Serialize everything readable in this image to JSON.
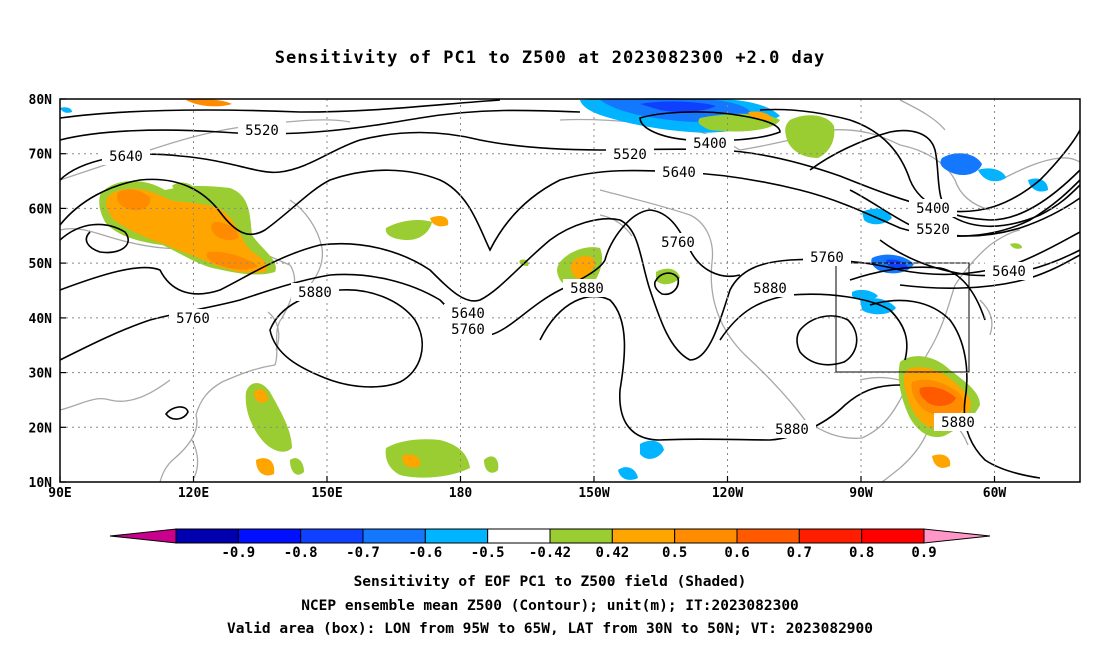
{
  "title": "Sensitivity of PC1 to Z500 at 2023082300 +2.0 day",
  "lat_labels": [
    "80N",
    "70N",
    "60N",
    "50N",
    "40N",
    "30N",
    "20N",
    "10N"
  ],
  "lon_labels": [
    "90E",
    "120E",
    "150E",
    "180",
    "150W",
    "120W",
    "90W",
    "60W"
  ],
  "contour_labels": {
    "c1": "5520",
    "c2": "5640",
    "c3": "5520",
    "c4": "5400",
    "c5": "5640",
    "c6": "5760",
    "c7": "5880",
    "c8": "5640",
    "c9": "5760",
    "c10": "5880",
    "c11": "5760",
    "c12": "5880",
    "c13": "5760",
    "c14": "5400",
    "c15": "5520",
    "c16": "5640",
    "c17": "5880",
    "c18": "5880"
  },
  "colorbar": {
    "ticks": [
      "-0.9",
      "-0.8",
      "-0.7",
      "-0.6",
      "-0.5",
      "-0.42",
      "0.42",
      "0.5",
      "0.6",
      "0.7",
      "0.8",
      "0.9"
    ],
    "colors": [
      "#c8008c",
      "#0000b0",
      "#0010ff",
      "#1040ff",
      "#1478ff",
      "#00b4ff",
      "#ffffff",
      "#9acd32",
      "#ffa500",
      "#ff8c00",
      "#ff5a00",
      "#ff1e00",
      "#ff0000",
      "#ff96c8"
    ]
  },
  "captions": {
    "line1": "Sensitivity of EOF PC1 to Z500 field (Shaded)",
    "line2": "NCEP ensemble mean Z500 (Contour); unit(m); IT:2023082300",
    "line3": "Valid area (box): LON from 95W to 65W, LAT from 30N to 50N; VT: 2023082900"
  }
}
